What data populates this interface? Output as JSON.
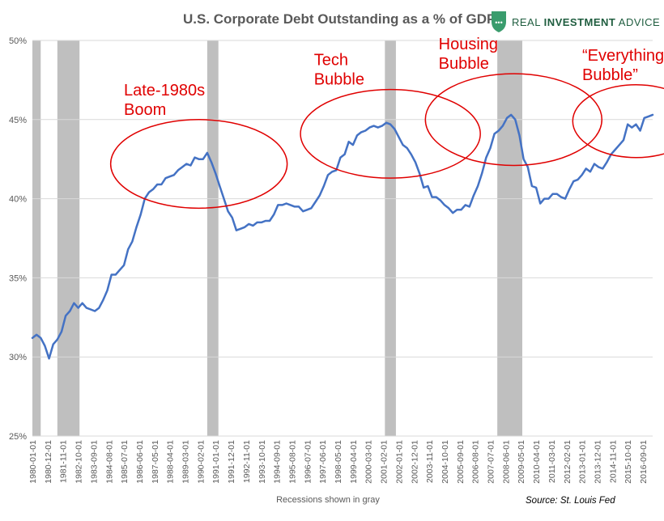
{
  "chart_data": {
    "type": "line",
    "title": "U.S. Corporate Debt Outstanding as a % of GDP",
    "brand": "REAL INVESTMENT ADVICE",
    "brand_parts": [
      "REAL ",
      "INVESTMENT",
      " ADVICE"
    ],
    "x_tick_labels": [
      "1980-01-01",
      "1980-12-01",
      "1981-11-01",
      "1982-10-01",
      "1983-09-01",
      "1984-08-01",
      "1985-07-01",
      "1986-06-01",
      "1987-05-01",
      "1988-04-01",
      "1989-03-01",
      "1990-02-01",
      "1991-01-01",
      "1991-12-01",
      "1992-11-01",
      "1993-10-01",
      "1994-09-01",
      "1995-08-01",
      "1996-07-01",
      "1997-06-01",
      "1998-05-01",
      "1999-04-01",
      "2000-03-01",
      "2001-02-01",
      "2002-01-01",
      "2002-12-01",
      "2003-11-01",
      "2004-10-01",
      "2005-09-01",
      "2006-08-01",
      "2007-07-01",
      "2008-06-01",
      "2009-05-01",
      "2010-04-01",
      "2011-03-01",
      "2012-02-01",
      "2013-01-01",
      "2013-12-01",
      "2014-11-01",
      "2015-10-01",
      "2016-09-01"
    ],
    "y_ticks": [
      {
        "value": 25,
        "label": "25%"
      },
      {
        "value": 30,
        "label": "30%"
      },
      {
        "value": 35,
        "label": "35%"
      },
      {
        "value": 40,
        "label": "40%"
      },
      {
        "value": 45,
        "label": "45%"
      },
      {
        "value": 50,
        "label": "50%"
      }
    ],
    "ylim": [
      25,
      50
    ],
    "xlim": [
      1980.0,
      2017.25
    ],
    "grid": "horizontal",
    "note": "Recessions shown in gray",
    "source": "Source: St. Louis Fed",
    "line_color": "#4472c4",
    "recession_color": "#bfbfbf",
    "recessions": [
      [
        1980.0,
        1980.5
      ],
      [
        1981.5,
        1982.83
      ],
      [
        1990.5,
        1991.17
      ],
      [
        2001.17,
        2001.83
      ],
      [
        2007.92,
        2009.42
      ]
    ],
    "series": [
      {
        "points": [
          [
            1980.0,
            31.2
          ],
          [
            1980.25,
            31.4
          ],
          [
            1980.5,
            31.2
          ],
          [
            1980.75,
            30.7
          ],
          [
            1981.0,
            29.9
          ],
          [
            1981.25,
            30.8
          ],
          [
            1981.5,
            31.1
          ],
          [
            1981.75,
            31.6
          ],
          [
            1982.0,
            32.6
          ],
          [
            1982.25,
            32.9
          ],
          [
            1982.5,
            33.4
          ],
          [
            1982.75,
            33.1
          ],
          [
            1983.0,
            33.4
          ],
          [
            1983.25,
            33.1
          ],
          [
            1983.5,
            33.0
          ],
          [
            1983.75,
            32.9
          ],
          [
            1984.0,
            33.1
          ],
          [
            1984.25,
            33.6
          ],
          [
            1984.5,
            34.2
          ],
          [
            1984.75,
            35.2
          ],
          [
            1985.0,
            35.2
          ],
          [
            1985.25,
            35.5
          ],
          [
            1985.5,
            35.8
          ],
          [
            1985.75,
            36.8
          ],
          [
            1986.0,
            37.3
          ],
          [
            1986.25,
            38.2
          ],
          [
            1986.5,
            39.0
          ],
          [
            1986.75,
            40.0
          ],
          [
            1987.0,
            40.4
          ],
          [
            1987.25,
            40.6
          ],
          [
            1987.5,
            40.9
          ],
          [
            1987.75,
            40.9
          ],
          [
            1988.0,
            41.3
          ],
          [
            1988.25,
            41.4
          ],
          [
            1988.5,
            41.5
          ],
          [
            1988.75,
            41.8
          ],
          [
            1989.0,
            42.0
          ],
          [
            1989.25,
            42.2
          ],
          [
            1989.5,
            42.1
          ],
          [
            1989.75,
            42.6
          ],
          [
            1990.0,
            42.5
          ],
          [
            1990.25,
            42.5
          ],
          [
            1990.5,
            42.9
          ],
          [
            1990.75,
            42.3
          ],
          [
            1991.0,
            41.6
          ],
          [
            1991.25,
            40.8
          ],
          [
            1991.5,
            40.0
          ],
          [
            1991.75,
            39.2
          ],
          [
            1992.0,
            38.8
          ],
          [
            1992.25,
            38.0
          ],
          [
            1992.5,
            38.1
          ],
          [
            1992.75,
            38.2
          ],
          [
            1993.0,
            38.4
          ],
          [
            1993.25,
            38.3
          ],
          [
            1993.5,
            38.5
          ],
          [
            1993.75,
            38.5
          ],
          [
            1994.0,
            38.6
          ],
          [
            1994.25,
            38.6
          ],
          [
            1994.5,
            39.0
          ],
          [
            1994.75,
            39.6
          ],
          [
            1995.0,
            39.6
          ],
          [
            1995.25,
            39.7
          ],
          [
            1995.5,
            39.6
          ],
          [
            1995.75,
            39.5
          ],
          [
            1996.0,
            39.5
          ],
          [
            1996.25,
            39.2
          ],
          [
            1996.5,
            39.3
          ],
          [
            1996.75,
            39.4
          ],
          [
            1997.0,
            39.8
          ],
          [
            1997.25,
            40.2
          ],
          [
            1997.5,
            40.8
          ],
          [
            1997.75,
            41.5
          ],
          [
            1998.0,
            41.7
          ],
          [
            1998.25,
            41.8
          ],
          [
            1998.5,
            42.6
          ],
          [
            1998.75,
            42.8
          ],
          [
            1999.0,
            43.6
          ],
          [
            1999.25,
            43.4
          ],
          [
            1999.5,
            44.0
          ],
          [
            1999.75,
            44.2
          ],
          [
            2000.0,
            44.3
          ],
          [
            2000.25,
            44.5
          ],
          [
            2000.5,
            44.6
          ],
          [
            2000.75,
            44.5
          ],
          [
            2001.0,
            44.6
          ],
          [
            2001.25,
            44.8
          ],
          [
            2001.5,
            44.7
          ],
          [
            2001.75,
            44.4
          ],
          [
            2002.0,
            43.9
          ],
          [
            2002.25,
            43.4
          ],
          [
            2002.5,
            43.2
          ],
          [
            2002.75,
            42.8
          ],
          [
            2003.0,
            42.3
          ],
          [
            2003.25,
            41.6
          ],
          [
            2003.5,
            40.7
          ],
          [
            2003.75,
            40.8
          ],
          [
            2004.0,
            40.1
          ],
          [
            2004.25,
            40.1
          ],
          [
            2004.5,
            39.9
          ],
          [
            2004.75,
            39.6
          ],
          [
            2005.0,
            39.4
          ],
          [
            2005.25,
            39.1
          ],
          [
            2005.5,
            39.3
          ],
          [
            2005.75,
            39.3
          ],
          [
            2006.0,
            39.6
          ],
          [
            2006.25,
            39.5
          ],
          [
            2006.5,
            40.2
          ],
          [
            2006.75,
            40.8
          ],
          [
            2007.0,
            41.6
          ],
          [
            2007.25,
            42.6
          ],
          [
            2007.5,
            43.2
          ],
          [
            2007.75,
            44.1
          ],
          [
            2008.0,
            44.3
          ],
          [
            2008.25,
            44.6
          ],
          [
            2008.5,
            45.1
          ],
          [
            2008.75,
            45.3
          ],
          [
            2009.0,
            45.0
          ],
          [
            2009.25,
            44.0
          ],
          [
            2009.5,
            42.5
          ],
          [
            2009.75,
            42.0
          ],
          [
            2010.0,
            40.8
          ],
          [
            2010.25,
            40.7
          ],
          [
            2010.5,
            39.7
          ],
          [
            2010.75,
            40.0
          ],
          [
            2011.0,
            40.0
          ],
          [
            2011.25,
            40.3
          ],
          [
            2011.5,
            40.3
          ],
          [
            2011.75,
            40.1
          ],
          [
            2012.0,
            40.0
          ],
          [
            2012.25,
            40.6
          ],
          [
            2012.5,
            41.1
          ],
          [
            2012.75,
            41.2
          ],
          [
            2013.0,
            41.5
          ],
          [
            2013.25,
            41.9
          ],
          [
            2013.5,
            41.7
          ],
          [
            2013.75,
            42.2
          ],
          [
            2014.0,
            42.0
          ],
          [
            2014.25,
            41.9
          ],
          [
            2014.5,
            42.3
          ],
          [
            2014.75,
            42.8
          ],
          [
            2015.0,
            43.1
          ],
          [
            2015.25,
            43.4
          ],
          [
            2015.5,
            43.7
          ],
          [
            2015.75,
            44.7
          ],
          [
            2016.0,
            44.5
          ],
          [
            2016.25,
            44.7
          ],
          [
            2016.5,
            44.3
          ],
          [
            2016.75,
            45.1
          ],
          [
            2017.0,
            45.2
          ],
          [
            2017.25,
            45.3
          ]
        ]
      }
    ],
    "annotations": [
      {
        "lines": [
          "Late-1980s",
          "Boom"
        ],
        "ellipse": {
          "cx": 1990.0,
          "cy": 42.2,
          "rx": 5.3,
          "ry": 2.8
        }
      },
      {
        "lines": [
          "Tech",
          "Bubble"
        ],
        "ellipse": {
          "cx": 2001.5,
          "cy": 44.1,
          "rx": 5.4,
          "ry": 2.8
        }
      },
      {
        "lines": [
          "Housing",
          "Bubble"
        ],
        "ellipse": {
          "cx": 2008.9,
          "cy": 45.0,
          "rx": 5.3,
          "ry": 2.9
        }
      },
      {
        "lines": [
          "“Everything",
          "Bubble”"
        ],
        "ellipse": {
          "cx": 2016.25,
          "cy": 44.9,
          "rx": 3.8,
          "ry": 2.3
        }
      }
    ]
  }
}
